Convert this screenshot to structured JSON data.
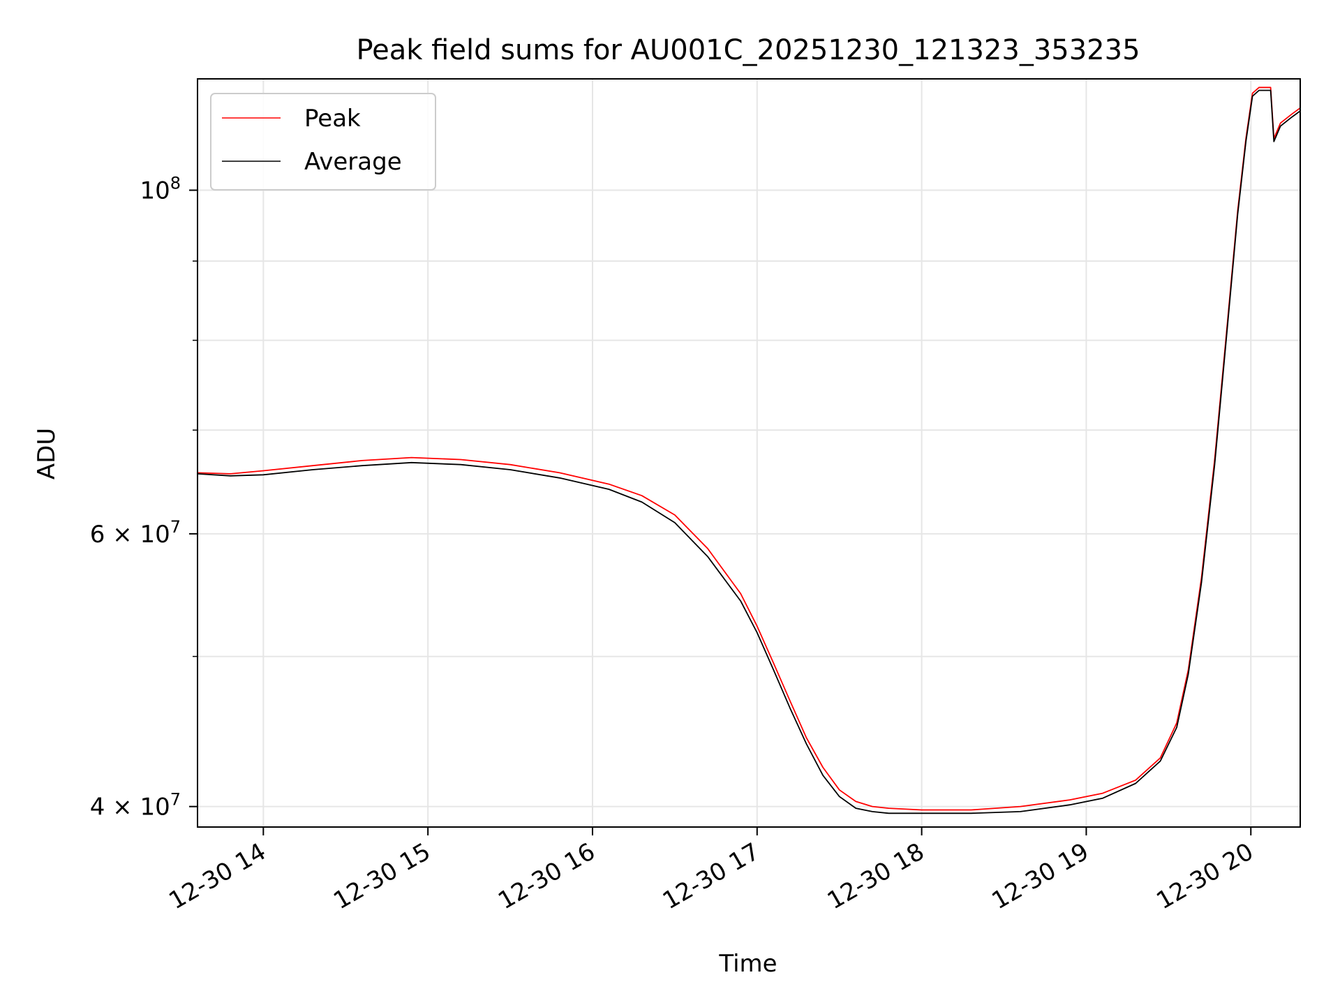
{
  "chart_data": {
    "type": "line",
    "title": "Peak field sums for AU001C_20251230_121323_353235",
    "xlabel": "Time",
    "ylabel": "ADU",
    "yscale": "log",
    "grid": true,
    "legend_position": "top-left",
    "xlim": [
      13.6,
      20.3
    ],
    "ylim": [
      38800000,
      118000000
    ],
    "x_ticks": [
      {
        "value": 14,
        "label": "12-30 14"
      },
      {
        "value": 15,
        "label": "12-30 15"
      },
      {
        "value": 16,
        "label": "12-30 16"
      },
      {
        "value": 17,
        "label": "12-30 17"
      },
      {
        "value": 18,
        "label": "12-30 18"
      },
      {
        "value": 19,
        "label": "12-30 19"
      },
      {
        "value": 20,
        "label": "12-30 20"
      }
    ],
    "y_ticks_major": [
      {
        "value": 40000000,
        "base": "4",
        "exp": "7"
      },
      {
        "value": 60000000,
        "base": "6",
        "exp": "7"
      },
      {
        "value": 100000000,
        "base": "10",
        "exp": "8"
      }
    ],
    "y_ticks_minor": [
      50000000,
      70000000,
      80000000,
      90000000
    ],
    "times_hours": [
      13.6,
      13.8,
      14.0,
      14.3,
      14.6,
      14.9,
      15.2,
      15.5,
      15.8,
      16.1,
      16.3,
      16.5,
      16.7,
      16.9,
      17.0,
      17.1,
      17.2,
      17.3,
      17.4,
      17.5,
      17.6,
      17.7,
      17.8,
      18.0,
      18.3,
      18.6,
      18.9,
      19.1,
      19.3,
      19.45,
      19.55,
      19.62,
      19.7,
      19.78,
      19.85,
      19.92,
      19.97,
      20.01,
      20.05,
      20.1,
      20.12,
      20.14,
      20.18,
      20.25,
      20.3
    ],
    "series": [
      {
        "name": "Peak",
        "color": "#ff0000",
        "values": [
          65700000,
          65600000,
          65900000,
          66400000,
          66900000,
          67200000,
          67000000,
          66500000,
          65700000,
          64600000,
          63500000,
          61700000,
          58700000,
          54900000,
          52300000,
          49500000,
          46800000,
          44300000,
          42400000,
          41000000,
          40300000,
          40000000,
          39900000,
          39800000,
          39800000,
          40000000,
          40400000,
          40800000,
          41600000,
          43000000,
          45300000,
          49000000,
          56200000,
          67000000,
          80500000,
          97000000,
          108000000,
          115500000,
          116500000,
          116500000,
          116500000,
          108000000,
          110500000,
          112000000,
          113000000
        ]
      },
      {
        "name": "Average",
        "color": "#000000",
        "values": [
          65600000,
          65400000,
          65500000,
          66000000,
          66400000,
          66700000,
          66500000,
          66000000,
          65200000,
          64100000,
          62900000,
          61000000,
          58000000,
          54300000,
          51800000,
          49000000,
          46300000,
          43900000,
          41900000,
          40600000,
          39900000,
          39700000,
          39600000,
          39600000,
          39600000,
          39700000,
          40100000,
          40500000,
          41400000,
          42800000,
          45000000,
          48700000,
          55800000,
          66500000,
          80000000,
          96500000,
          107500000,
          115000000,
          116000000,
          116000000,
          116000000,
          107500000,
          110000000,
          111500000,
          112500000
        ]
      }
    ]
  }
}
